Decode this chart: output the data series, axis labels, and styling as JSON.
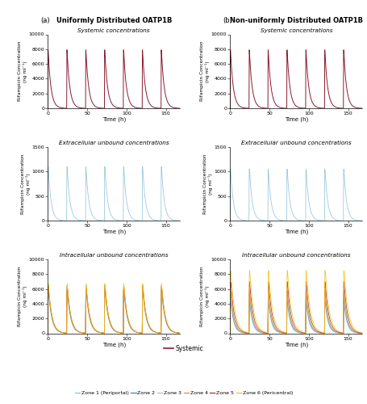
{
  "title_a": "Uniformly Distributed OATP1B",
  "title_b": "Non-uniformly Distributed OATP1B",
  "label_a": "(a)",
  "label_b": "(b)",
  "subplot_titles": [
    "Systemic concentrations",
    "Extracellular unbound concentrations",
    "Intracellular unbound concentrations"
  ],
  "ylabel": "Rifampicin Concentration\n(ng ml⁻¹)",
  "xlabel": "Time (h)",
  "colors": {
    "systemic": "#8B1A2F",
    "zone1": "#92C5DE",
    "zone2": "#4393C3",
    "zone3": "#A8D5A2",
    "zone4": "#D4956A",
    "zone5": "#C0392B",
    "zone6": "#F5C518"
  },
  "legend_systemic_label": "Systemic",
  "legend_zone_labels": [
    "Zone 1 (Periportal)",
    "Zone 2",
    "Zone 3",
    "Zone 4",
    "Zone 5",
    "Zone 6 (Pericentral)"
  ]
}
